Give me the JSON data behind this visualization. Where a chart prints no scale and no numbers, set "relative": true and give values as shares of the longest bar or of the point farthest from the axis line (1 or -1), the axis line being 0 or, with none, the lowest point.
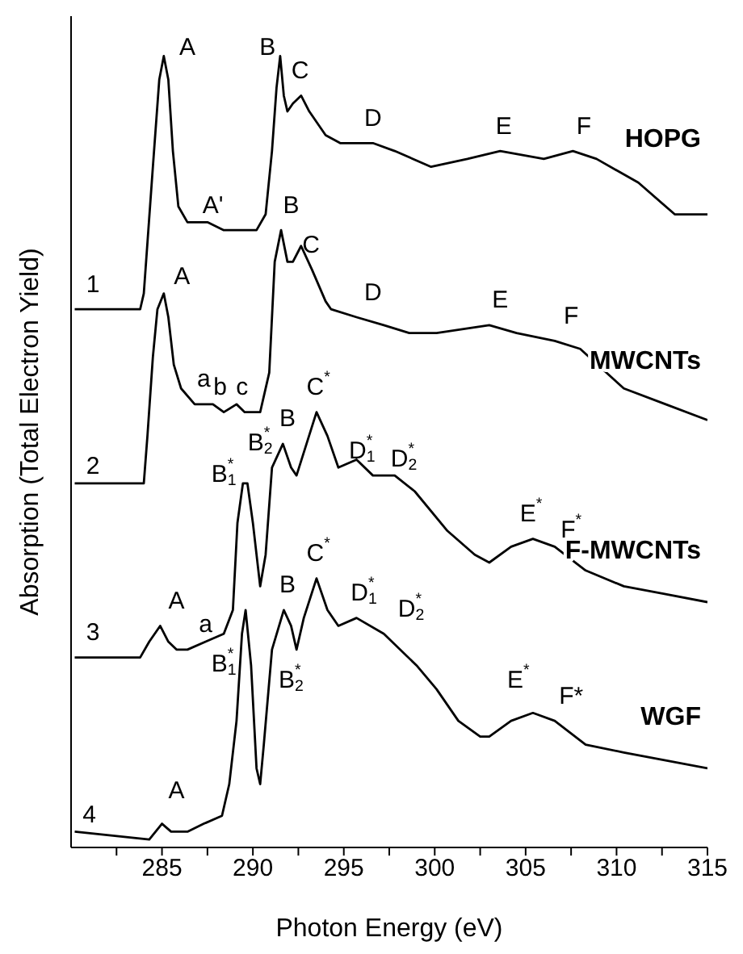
{
  "chart_data": {
    "type": "line",
    "xlabel": "Photon Energy (eV)",
    "ylabel": "Absorption (Total Electron Yield)",
    "relative": true,
    "marker": "none",
    "grid": false,
    "legend": false,
    "xlim": [
      280,
      315
    ],
    "xticks": [
      {
        "value": 282.5,
        "label": null
      },
      285,
      {
        "value": 287.5,
        "label": null
      },
      290,
      {
        "value": 292.5,
        "label": null
      },
      295,
      {
        "value": 297.5,
        "label": null
      },
      300,
      {
        "value": 302.5,
        "label": null
      },
      305,
      {
        "value": 307.5,
        "label": null
      },
      310,
      {
        "value": 312.5,
        "label": null
      },
      315
    ],
    "series": [
      {
        "name": "HOPG",
        "color": "#000000",
        "x": [
          280.2,
          283.8,
          284.0,
          284.5,
          284.85,
          285.1,
          285.35,
          285.6,
          285.9,
          286.4,
          287.5,
          288.4,
          290.2,
          290.7,
          291.05,
          291.3,
          291.5,
          291.7,
          291.9,
          292.2,
          292.65,
          293.1,
          294.0,
          294.8,
          296.6,
          297.8,
          299.8,
          301.8,
          303.6,
          306.0,
          307.6,
          308.9,
          311.2,
          313.2,
          315
        ],
        "values": [
          0.68,
          0.68,
          0.7,
          0.86,
          0.97,
          1.0,
          0.97,
          0.88,
          0.81,
          0.79,
          0.79,
          0.78,
          0.78,
          0.8,
          0.88,
          0.96,
          1.0,
          0.95,
          0.93,
          0.94,
          0.95,
          0.93,
          0.9,
          0.89,
          0.89,
          0.88,
          0.86,
          0.87,
          0.88,
          0.87,
          0.88,
          0.87,
          0.84,
          0.8,
          0.8
        ]
      },
      {
        "name": "MWCNTs",
        "color": "#000000",
        "x": [
          280.2,
          284.0,
          284.2,
          284.5,
          284.75,
          285.1,
          285.35,
          285.65,
          286.05,
          286.8,
          287.25,
          287.8,
          288.4,
          289.1,
          289.55,
          290.4,
          290.9,
          291.2,
          291.55,
          291.9,
          292.2,
          292.65,
          293.25,
          294.0,
          294.3,
          295.7,
          297.2,
          298.6,
          300.1,
          303.0,
          304.5,
          306.6,
          308.0,
          310.4,
          312.7,
          315
        ],
        "values": [
          0.46,
          0.46,
          0.52,
          0.62,
          0.68,
          0.7,
          0.67,
          0.61,
          0.58,
          0.56,
          0.56,
          0.56,
          0.55,
          0.56,
          0.55,
          0.55,
          0.6,
          0.74,
          0.78,
          0.74,
          0.74,
          0.76,
          0.73,
          0.69,
          0.68,
          0.67,
          0.66,
          0.65,
          0.65,
          0.66,
          0.65,
          0.64,
          0.63,
          0.58,
          0.56,
          0.54
        ]
      },
      {
        "name": "F-MWCNTs",
        "color": "#000000",
        "x": [
          280.2,
          283.8,
          284.3,
          284.9,
          285.35,
          285.8,
          286.4,
          287.4,
          288.4,
          288.9,
          289.15,
          289.45,
          289.7,
          290.0,
          290.4,
          290.7,
          291.05,
          291.65,
          292.1,
          292.4,
          292.95,
          293.5,
          294.1,
          294.7,
          295.7,
          296.6,
          297.8,
          298.9,
          300.7,
          302.2,
          303.0,
          304.2,
          305.4,
          306.6,
          308.3,
          310.4,
          312.7,
          315
        ],
        "values": [
          0.24,
          0.24,
          0.26,
          0.28,
          0.26,
          0.25,
          0.25,
          0.26,
          0.27,
          0.3,
          0.41,
          0.46,
          0.46,
          0.41,
          0.33,
          0.37,
          0.48,
          0.51,
          0.48,
          0.47,
          0.51,
          0.55,
          0.52,
          0.48,
          0.49,
          0.47,
          0.47,
          0.45,
          0.4,
          0.37,
          0.36,
          0.38,
          0.39,
          0.38,
          0.35,
          0.33,
          0.32,
          0.31
        ]
      },
      {
        "name": "WGF",
        "color": "#000000",
        "x": [
          280.2,
          284.3,
          285.0,
          285.5,
          286.4,
          287.3,
          288.3,
          288.7,
          289.1,
          289.4,
          289.6,
          289.9,
          290.2,
          290.4,
          290.6,
          291.05,
          291.7,
          292.1,
          292.4,
          292.8,
          293.5,
          294.1,
          294.7,
          295.7,
          297.2,
          299.0,
          300.1,
          301.3,
          302.5,
          303.0,
          304.2,
          305.4,
          306.6,
          308.3,
          310.4,
          312.7,
          315
        ],
        "values": [
          0.02,
          0.01,
          0.03,
          0.02,
          0.02,
          0.03,
          0.04,
          0.08,
          0.16,
          0.27,
          0.3,
          0.23,
          0.1,
          0.08,
          0.13,
          0.25,
          0.3,
          0.28,
          0.25,
          0.29,
          0.34,
          0.3,
          0.28,
          0.29,
          0.27,
          0.23,
          0.2,
          0.16,
          0.14,
          0.14,
          0.16,
          0.17,
          0.16,
          0.13,
          0.12,
          0.11,
          0.1
        ]
      }
    ],
    "annotations": [
      "A",
      "B",
      "C",
      "A'",
      "D",
      "E",
      "F",
      "B",
      "C",
      "A",
      "D",
      "E",
      "F",
      "a",
      "b",
      "c",
      "C$^{*}$",
      "B",
      "B$_{2}$$^{*}$",
      "B$_{1}$$^{*}$",
      "D$_{1}$$^{*}$",
      "D$_{2}$$^{*}$",
      "E$^{*}$",
      "F$^{*}$",
      "A",
      "a",
      "B",
      "C$^{*}$",
      "D$_{1}$$^{*}$",
      "D$_{2}$$^{*}$",
      "B$_{1}$$^{*}$",
      "B$_{2}$$^{*}$",
      "E$^{*}$",
      "F*",
      "A",
      "1",
      "2",
      "3",
      "4"
    ]
  }
}
